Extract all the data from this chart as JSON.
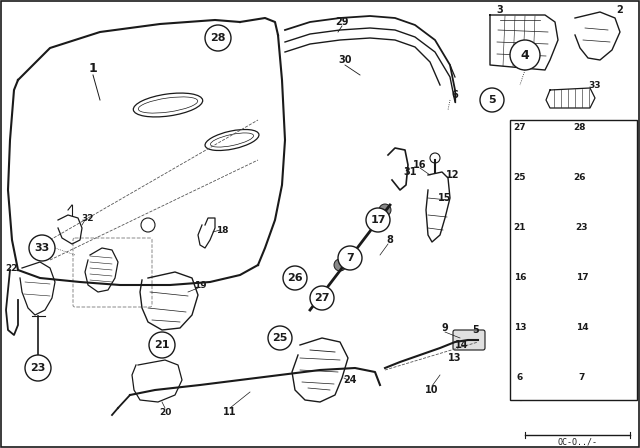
{
  "bg_color": "#ffffff",
  "line_color": "#1a1a1a",
  "border_color": "#111111",
  "fig_width": 6.4,
  "fig_height": 4.48,
  "dpi": 100,
  "watermark": "OC-O../-"
}
